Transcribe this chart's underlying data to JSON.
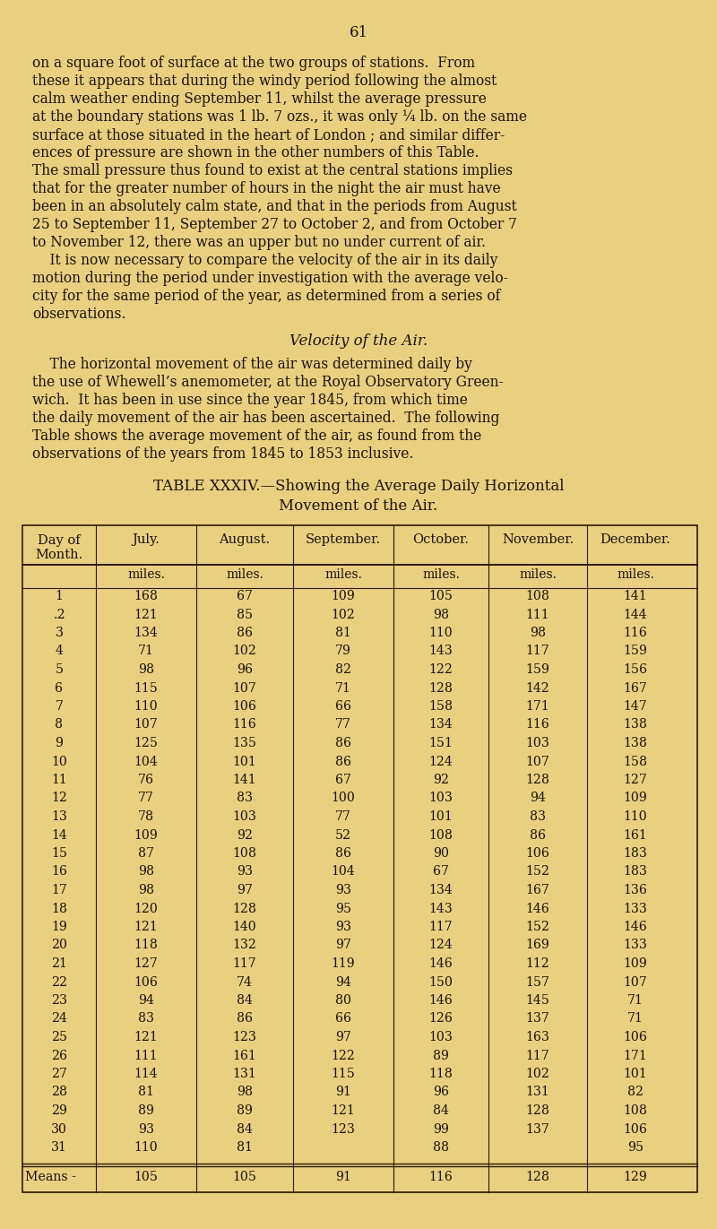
{
  "page_number": "61",
  "background_color": "#e8d080",
  "text_color": "#1a1208",
  "body_text": [
    "on a square foot of surface at the two groups of stations.  From",
    "these it appears that during the windy period following the almost",
    "calm weather ending September 11, whilst the average pressure",
    "at the boundary stations was 1 lb. 7 ozs., it was only ¼ lb. on the same",
    "surface at those situated in the heart of London ; and similar differ-",
    "ences of pressure are shown in the other numbers of this Table.",
    "The small pressure thus found to exist at the central stations implies",
    "that for the greater number of hours in the night the air must have",
    "been in an absolutely calm state, and that in the periods from August",
    "25 to September 11, September 27 to October 2, and from October 7",
    "to November 12, there was an upper but no under current of air.",
    "    It is now necessary to compare the velocity of the air in its daily",
    "motion during the period under investigation with the average velo-",
    "city for the same period of the year, as determined from a series of",
    "observations."
  ],
  "velocity_heading": "Velocity of the Air.",
  "velocity_text": [
    "    The horizontal movement of the air was determined daily by",
    "the use of Whewell’s anemometer, at the Royal Observatory Green-",
    "wich.  It has been in use since the year 1845, from which time",
    "the daily movement of the air has been ascertained.  The following",
    "Table shows the average movement of the air, as found from the",
    "observations of the years from 1845 to 1853 inclusive."
  ],
  "table_title_line1": "TABLE XXXIV.—Showing the Average Daily Horizontal",
  "table_title_line2": "Movement of the Air.",
  "col_headers": [
    "Day of\nMonth.",
    "July.",
    "August.",
    "September.",
    "October.",
    "November.",
    "December."
  ],
  "subheaders": [
    "miles.",
    "miles.",
    "miles.",
    "miles.",
    "miles.",
    "miles."
  ],
  "days": [
    1,
    2,
    3,
    4,
    5,
    6,
    7,
    8,
    9,
    10,
    11,
    12,
    13,
    14,
    15,
    16,
    17,
    18,
    19,
    20,
    21,
    22,
    23,
    24,
    25,
    26,
    27,
    28,
    29,
    30,
    31
  ],
  "july": [
    168,
    121,
    134,
    71,
    98,
    115,
    110,
    107,
    125,
    104,
    76,
    77,
    78,
    109,
    87,
    98,
    98,
    120,
    121,
    118,
    127,
    106,
    94,
    83,
    121,
    111,
    114,
    81,
    89,
    93,
    110
  ],
  "august": [
    67,
    85,
    86,
    102,
    96,
    107,
    106,
    116,
    135,
    101,
    141,
    83,
    103,
    92,
    108,
    93,
    97,
    128,
    140,
    132,
    117,
    74,
    84,
    86,
    123,
    161,
    131,
    98,
    89,
    84,
    81
  ],
  "september": [
    109,
    102,
    81,
    79,
    82,
    71,
    66,
    77,
    86,
    86,
    67,
    100,
    77,
    52,
    86,
    104,
    93,
    95,
    93,
    97,
    119,
    94,
    80,
    66,
    97,
    122,
    115,
    91,
    121,
    123,
    null
  ],
  "october": [
    105,
    98,
    110,
    143,
    122,
    128,
    158,
    134,
    151,
    124,
    92,
    103,
    101,
    108,
    90,
    67,
    134,
    143,
    117,
    124,
    146,
    150,
    146,
    126,
    103,
    89,
    118,
    96,
    84,
    99,
    88
  ],
  "november": [
    108,
    111,
    98,
    117,
    159,
    142,
    171,
    116,
    103,
    107,
    128,
    94,
    83,
    86,
    106,
    152,
    167,
    146,
    152,
    169,
    112,
    157,
    145,
    137,
    163,
    117,
    102,
    131,
    128,
    137,
    null
  ],
  "december": [
    141,
    144,
    116,
    159,
    156,
    167,
    147,
    138,
    138,
    158,
    127,
    109,
    110,
    161,
    183,
    183,
    136,
    133,
    146,
    133,
    109,
    107,
    71,
    71,
    106,
    171,
    101,
    82,
    108,
    106,
    95
  ],
  "means": {
    "july": 105,
    "august": 105,
    "september": 91,
    "october": 116,
    "november": 128,
    "december": 129
  }
}
